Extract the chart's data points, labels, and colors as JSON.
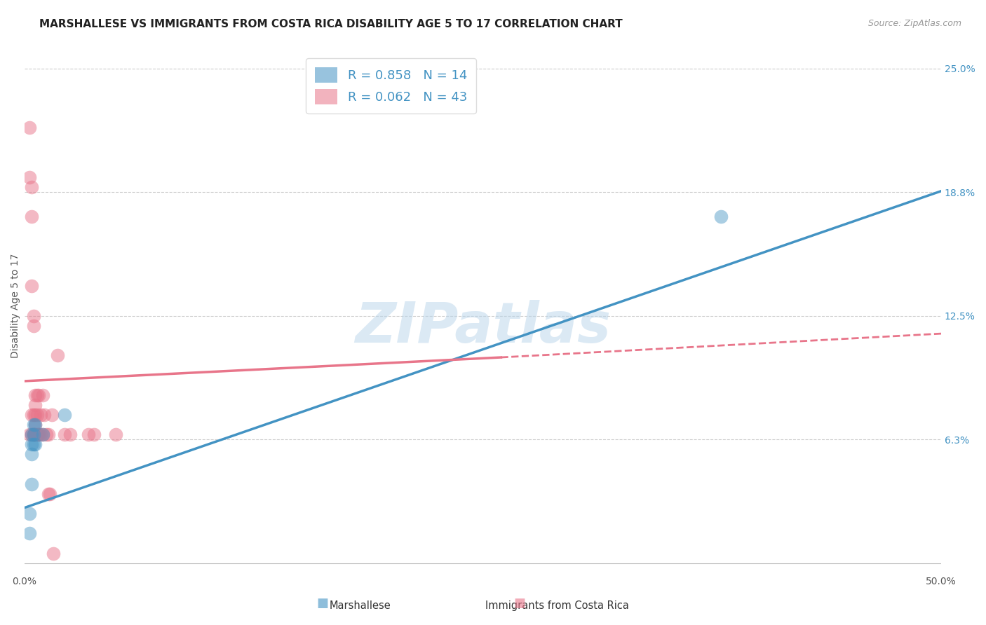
{
  "title": "MARSHALLESE VS IMMIGRANTS FROM COSTA RICA DISABILITY AGE 5 TO 17 CORRELATION CHART",
  "source": "Source: ZipAtlas.com",
  "ylabel": "Disability Age 5 to 17",
  "ytick_values": [
    0.0,
    0.0625,
    0.125,
    0.1875,
    0.25
  ],
  "ytick_labels": [
    "",
    "6.3%",
    "12.5%",
    "18.8%",
    "25.0%"
  ],
  "xlim": [
    0.0,
    0.5
  ],
  "ylim": [
    -0.005,
    0.265
  ],
  "blue_color": "#4393c3",
  "pink_color": "#e8758a",
  "watermark_color": "#b8d4ea",
  "grid_color": "#cccccc",
  "background_color": "#ffffff",
  "title_fontsize": 11,
  "axis_label_fontsize": 10,
  "tick_fontsize": 10,
  "source_fontsize": 9,
  "legend_fontsize": 13,
  "marshallese_x": [
    0.003,
    0.003,
    0.004,
    0.004,
    0.004,
    0.004,
    0.005,
    0.005,
    0.005,
    0.006,
    0.006,
    0.01,
    0.022,
    0.38
  ],
  "marshallese_y": [
    0.015,
    0.025,
    0.04,
    0.055,
    0.06,
    0.065,
    0.06,
    0.065,
    0.07,
    0.06,
    0.07,
    0.065,
    0.075,
    0.175
  ],
  "costarica_x": [
    0.003,
    0.003,
    0.003,
    0.004,
    0.004,
    0.004,
    0.004,
    0.004,
    0.005,
    0.005,
    0.005,
    0.005,
    0.005,
    0.005,
    0.006,
    0.006,
    0.006,
    0.006,
    0.006,
    0.006,
    0.007,
    0.007,
    0.007,
    0.008,
    0.008,
    0.008,
    0.009,
    0.009,
    0.01,
    0.01,
    0.011,
    0.012,
    0.013,
    0.013,
    0.014,
    0.015,
    0.016,
    0.018,
    0.022,
    0.025,
    0.035,
    0.038,
    0.05
  ],
  "costarica_y": [
    0.22,
    0.195,
    0.065,
    0.19,
    0.175,
    0.14,
    0.075,
    0.065,
    0.125,
    0.12,
    0.075,
    0.065,
    0.065,
    0.065,
    0.085,
    0.08,
    0.075,
    0.07,
    0.065,
    0.065,
    0.085,
    0.075,
    0.065,
    0.085,
    0.065,
    0.065,
    0.075,
    0.065,
    0.085,
    0.065,
    0.075,
    0.065,
    0.035,
    0.065,
    0.035,
    0.075,
    0.005,
    0.105,
    0.065,
    0.065,
    0.065,
    0.065,
    0.065
  ],
  "blue_line": {
    "x0": 0.0,
    "x1": 0.5,
    "y0": 0.028,
    "y1": 0.188
  },
  "pink_solid_line": {
    "x0": 0.0,
    "x1": 0.26,
    "y0": 0.092,
    "y1": 0.104
  },
  "pink_dashed_line": {
    "x0": 0.26,
    "x1": 0.5,
    "y0": 0.104,
    "y1": 0.116
  },
  "pink_line_full": {
    "x0": 0.0,
    "x1": 0.5,
    "y0": 0.092,
    "y1": 0.116
  }
}
